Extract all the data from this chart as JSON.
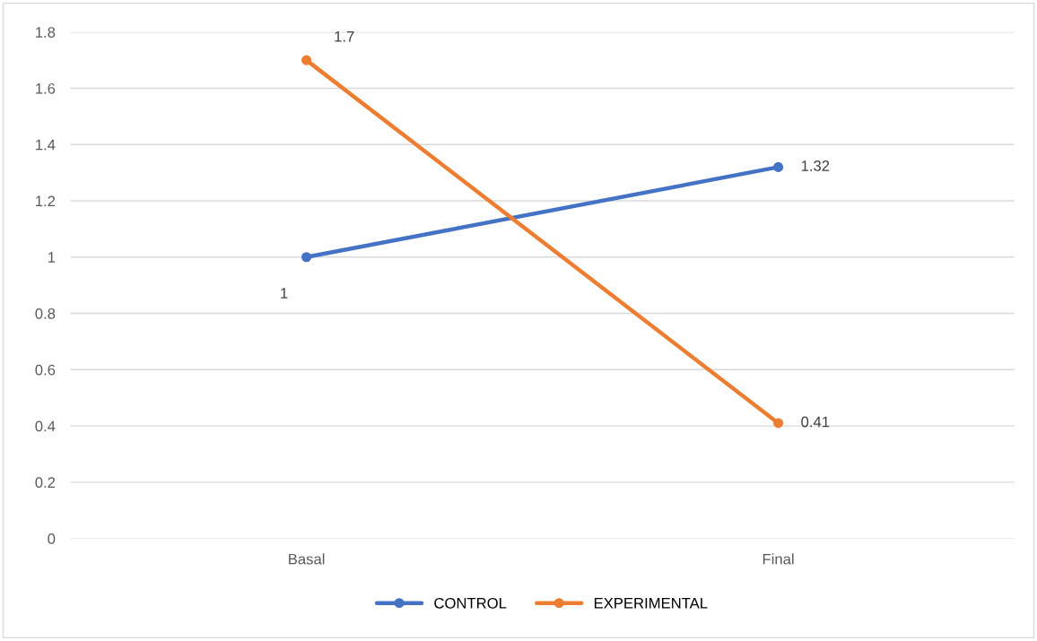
{
  "chart_data": {
    "type": "line",
    "categories": [
      "Basal",
      "Final"
    ],
    "series": [
      {
        "name": "CONTROL",
        "color": "#4472c4",
        "values": [
          1,
          1.32
        ]
      },
      {
        "name": "EXPERIMENTAL",
        "color": "#ed7d31",
        "values": [
          1.7,
          0.41
        ]
      }
    ],
    "ylim": [
      0,
      1.8
    ],
    "yticks": [
      0,
      0.2,
      0.4,
      0.6,
      0.8,
      1,
      1.2,
      1.4,
      1.6,
      1.8
    ],
    "grid": "y",
    "legend": "bottom",
    "marker": "circle",
    "line_style": "solid",
    "data_labels": true
  }
}
